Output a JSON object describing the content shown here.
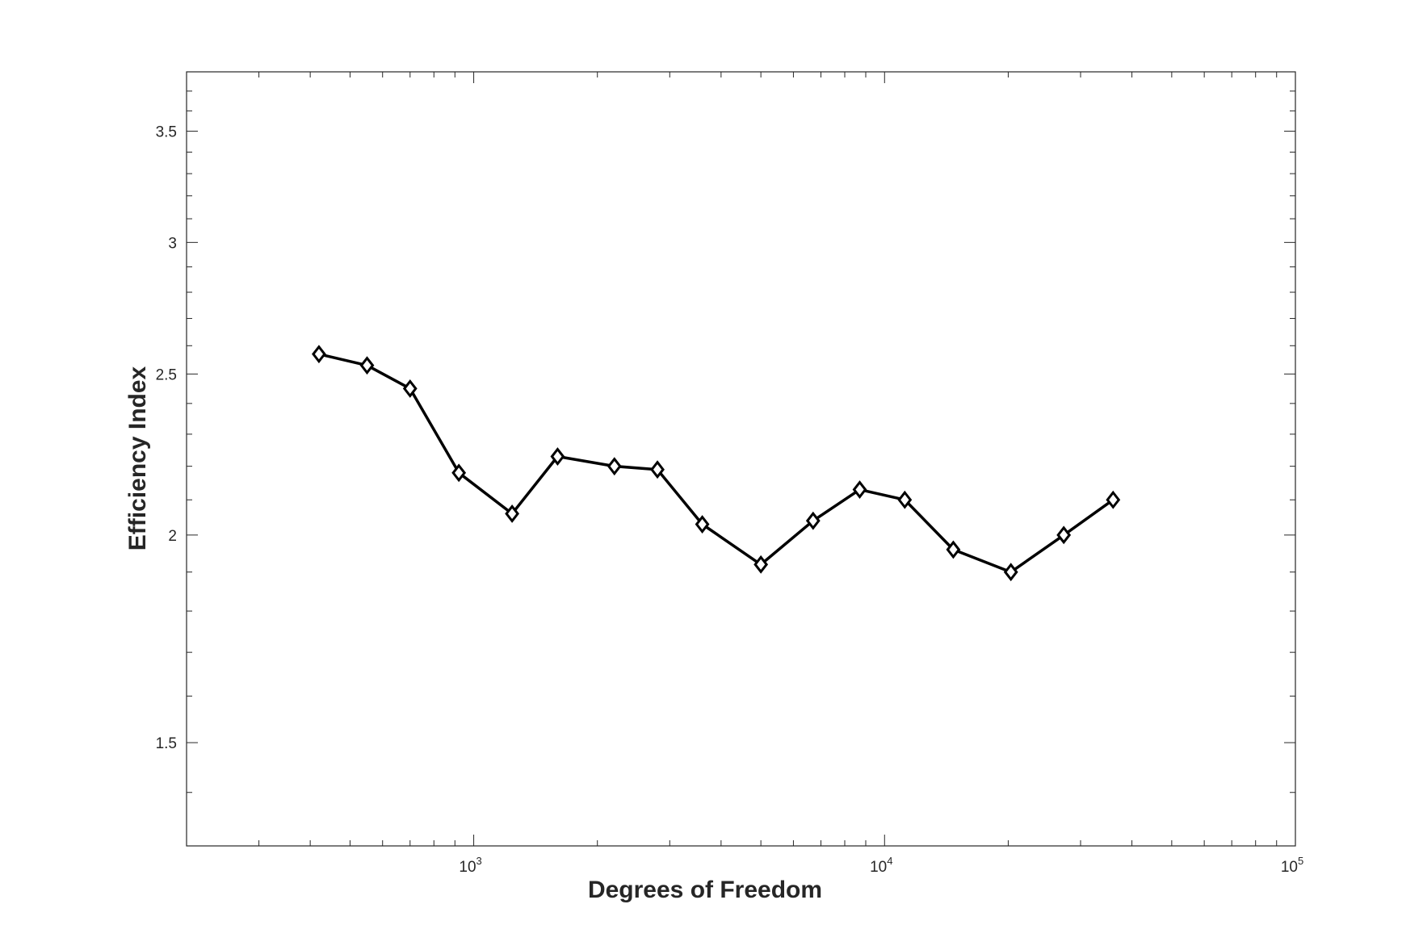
{
  "chart_data": {
    "type": "line",
    "xlabel": "Degrees of Freedom",
    "ylabel": "Efficiency Index",
    "x_scale": "log",
    "y_scale": "log",
    "xlim": [
      200,
      100000
    ],
    "ylim": [
      1.3,
      3.8
    ],
    "x_ticks": [
      {
        "value": 1000,
        "base": "10",
        "exp": "3"
      },
      {
        "value": 10000,
        "base": "10",
        "exp": "4"
      },
      {
        "value": 100000,
        "base": "10",
        "exp": "5"
      }
    ],
    "y_ticks": [
      {
        "value": 1.5,
        "label": "1.5"
      },
      {
        "value": 2,
        "label": "2"
      },
      {
        "value": 2.5,
        "label": "2.5"
      },
      {
        "value": 3,
        "label": "3"
      },
      {
        "value": 3.5,
        "label": "3.5"
      }
    ],
    "grid": false,
    "color": "#000000",
    "marker": "diamond",
    "series": [
      {
        "x": [
          420,
          550,
          700,
          920,
          1240,
          1600,
          2200,
          2800,
          3600,
          5000,
          6700,
          8700,
          11200,
          14700,
          20300,
          27300,
          36000
        ],
        "y": [
          2.57,
          2.53,
          2.45,
          2.18,
          2.06,
          2.23,
          2.2,
          2.19,
          2.03,
          1.92,
          2.04,
          2.13,
          2.1,
          1.96,
          1.9,
          2.0,
          2.1
        ]
      }
    ]
  }
}
